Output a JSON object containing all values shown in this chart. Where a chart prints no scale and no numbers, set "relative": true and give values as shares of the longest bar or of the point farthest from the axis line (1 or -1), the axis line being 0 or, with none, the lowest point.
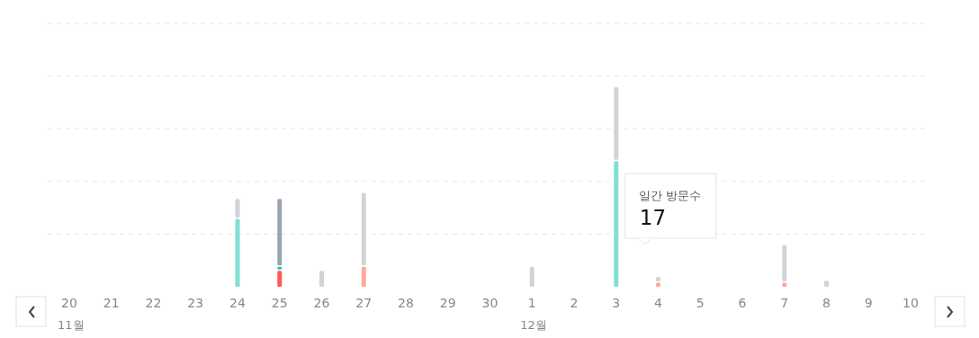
{
  "chart_data": {
    "type": "bar",
    "stacked": true,
    "relative": true,
    "grid": "y",
    "categories": [
      "20",
      "21",
      "22",
      "23",
      "24",
      "25",
      "26",
      "27",
      "28",
      "29",
      "30",
      "1",
      "2",
      "3",
      "4",
      "5",
      "6",
      "7",
      "8",
      "9",
      "10"
    ],
    "series": [
      {
        "color": "#ff5a4e",
        "values": [
          0,
          0,
          0,
          0,
          0,
          0.08,
          0,
          0,
          0,
          0,
          0,
          0,
          0,
          0,
          0,
          0,
          0,
          0,
          0,
          0,
          0
        ]
      },
      {
        "color": "#ffa89c",
        "values": [
          0,
          0,
          0,
          0,
          0,
          0,
          0,
          0.1,
          0,
          0,
          0,
          0,
          0,
          0,
          0.02,
          0,
          0,
          0.02,
          0,
          0,
          0
        ]
      },
      {
        "color": "#7fe0d3",
        "values": [
          0,
          0,
          0,
          0,
          0.34,
          0,
          0,
          0,
          0,
          0,
          0,
          0,
          0,
          0.63,
          0,
          0,
          0,
          0,
          0,
          0,
          0
        ]
      },
      {
        "color": "#1dc9b0",
        "values": [
          0,
          0,
          0,
          0,
          0,
          0.02,
          0,
          0,
          0,
          0,
          0,
          0,
          0,
          0,
          0,
          0,
          0,
          0,
          0,
          0,
          0
        ]
      },
      {
        "color": "#9aa4ae",
        "values": [
          0,
          0,
          0,
          0,
          0,
          0.34,
          0,
          0,
          0,
          0,
          0,
          0,
          0,
          0,
          0,
          0,
          0,
          0,
          0,
          0,
          0
        ]
      },
      {
        "color": "#d0d4d8",
        "values": [
          0,
          0,
          0,
          0,
          0.1,
          0,
          0.08,
          0.37,
          0,
          0,
          0,
          0.1,
          0,
          0.37,
          0.03,
          0,
          0,
          0.19,
          0.03,
          0,
          0
        ]
      }
    ],
    "annotations": [
      "11월",
      "12월",
      "일간 방문수",
      "17"
    ]
  }
}
